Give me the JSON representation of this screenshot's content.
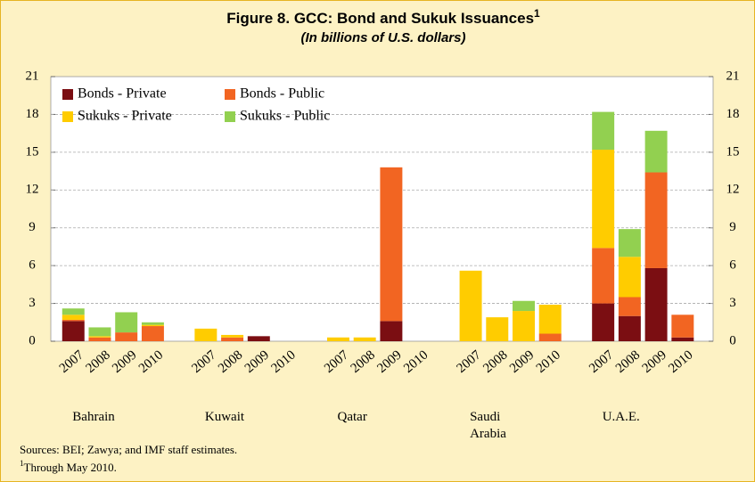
{
  "chart_data": {
    "type": "stacked_bar",
    "title": "Figure 8. GCC: Bond and Sukuk Issuances",
    "title_superscript": "1",
    "subtitle": "(In billions of U.S. dollars)",
    "groups": [
      "Bahrain",
      "Kuwait",
      "Qatar",
      "Saudi Arabia",
      "U.A.E."
    ],
    "categories": [
      "2007",
      "2008",
      "2009",
      "2010",
      "2007",
      "2008",
      "2009",
      "2010",
      "2007",
      "2008",
      "2009",
      "2010",
      "2007",
      "2008",
      "2009",
      "2010",
      "2007",
      "2008",
      "2009",
      "2010"
    ],
    "series": [
      {
        "name": "Bonds - Private",
        "color": "#7b0e12",
        "values": [
          1.6,
          0,
          0,
          0,
          0,
          0,
          0.4,
          0,
          0,
          0,
          1.6,
          0,
          0,
          0,
          0,
          0,
          3.0,
          2.0,
          5.8,
          0.3
        ]
      },
      {
        "name": "Bonds - Public",
        "color": "#f26522",
        "values": [
          0.1,
          0.3,
          0.7,
          1.2,
          0,
          0.3,
          0,
          0,
          0,
          0,
          12.2,
          0,
          0,
          0,
          0,
          0.6,
          4.4,
          1.5,
          7.6,
          1.8
        ]
      },
      {
        "name": "Sukuks - Private",
        "color": "#ffcc00",
        "values": [
          0.4,
          0.1,
          0,
          0.1,
          1.0,
          0.2,
          0,
          0,
          0.3,
          0.3,
          0,
          0,
          5.6,
          1.9,
          2.4,
          2.3,
          7.8,
          3.2,
          0,
          0
        ]
      },
      {
        "name": "Sukuks - Public",
        "color": "#92d050",
        "values": [
          0.5,
          0.7,
          1.6,
          0.2,
          0,
          0,
          0,
          0,
          0,
          0,
          0,
          0,
          0,
          0,
          0.8,
          0,
          3.0,
          2.2,
          3.3,
          0
        ]
      }
    ],
    "ylim": [
      0,
      21
    ],
    "yticks": [
      0,
      3,
      6,
      9,
      12,
      15,
      18,
      21
    ],
    "grid": true,
    "legend": "top-left",
    "notes": [
      "Sources: BEI; Zawya; and IMF staff estimates.",
      "Through May 2010."
    ]
  }
}
